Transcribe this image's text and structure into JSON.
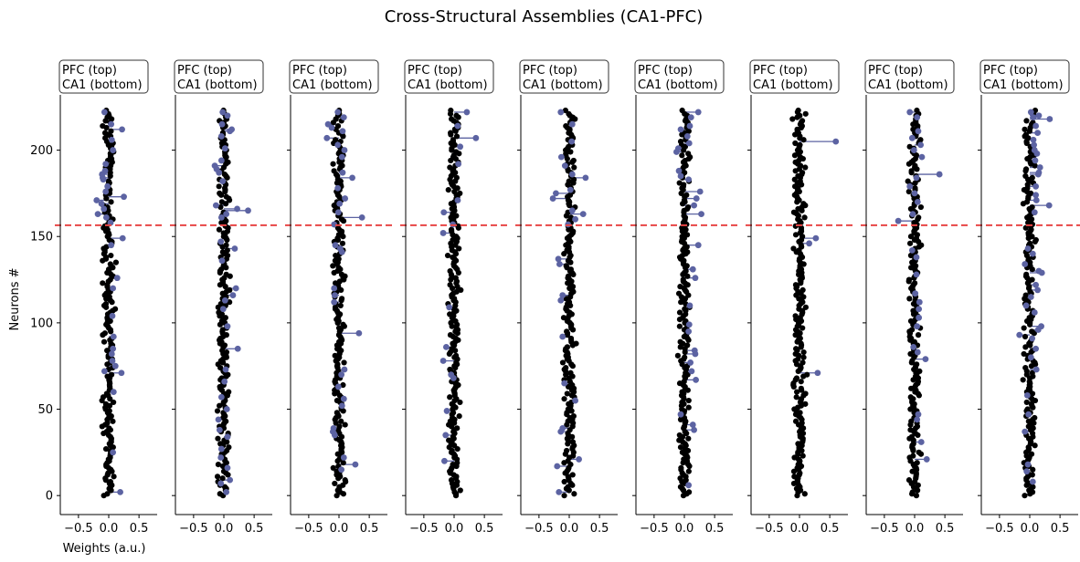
{
  "title": "Cross-Structural Assemblies (CA1-PFC)",
  "colors": {
    "background_point": "#000000",
    "highlight_point": "#5c63a2",
    "divider_line": "#e84646",
    "axis": "#000000"
  },
  "chart_data": {
    "type": "scatter",
    "description_of_marks": "Each panel plots neuron weights (x) against neuron index (y); black dots are all neurons, blue dots with stems are assembly members; dashed red line separates PFC (top) from CA1 (bottom).",
    "xlabel": "Weights (a.u.)",
    "ylabel": "Neurons #",
    "xlim": [
      -0.8,
      0.8
    ],
    "ylim": [
      -11,
      232
    ],
    "xticks": [
      -0.5,
      0.0,
      0.5
    ],
    "xtick_labels": [
      "−0.5",
      "0.0",
      "0.5"
    ],
    "yticks": [
      0,
      50,
      100,
      150,
      200
    ],
    "ytick_labels": [
      "0",
      "50",
      "100",
      "150",
      "200"
    ],
    "divider_y": 156.5,
    "neuron_count": 224,
    "panel_label_line1": "PFC (top)",
    "panel_label_line2": "CA1 (bottom)",
    "panels": [
      {
        "highlights": [
          [
            222,
            -0.07
          ],
          [
            215,
            0.04
          ],
          [
            212,
            0.22
          ],
          [
            206,
            0.05
          ],
          [
            200,
            0.07
          ],
          [
            192,
            -0.05
          ],
          [
            188,
            -0.06
          ],
          [
            186,
            -0.11
          ],
          [
            184,
            -0.1
          ],
          [
            183,
            -0.09
          ],
          [
            179,
            -0.02
          ],
          [
            176,
            -0.05
          ],
          [
            173,
            0.25
          ],
          [
            171,
            -0.2
          ],
          [
            169,
            -0.12
          ],
          [
            166,
            -0.08
          ],
          [
            163,
            -0.18
          ],
          [
            161,
            -0.04
          ],
          [
            158,
            0.03
          ],
          [
            149,
            0.23
          ],
          [
            145,
            0.04
          ],
          [
            126,
            0.14
          ],
          [
            120,
            0.07
          ],
          [
            104,
            0.06
          ],
          [
            92,
            0.08
          ],
          [
            85,
            0.07
          ],
          [
            82,
            0.05
          ],
          [
            78,
            0.06
          ],
          [
            75,
            0.11
          ],
          [
            72,
            -0.07
          ],
          [
            71,
            0.21
          ],
          [
            60,
            0.08
          ],
          [
            25,
            0.07
          ],
          [
            2,
            0.19
          ]
        ]
      },
      {
        "highlights": [
          [
            222,
            -0.02
          ],
          [
            220,
            0.06
          ],
          [
            215,
            -0.03
          ],
          [
            212,
            0.13
          ],
          [
            211,
            0.1
          ],
          [
            208,
            -0.04
          ],
          [
            201,
            0.02
          ],
          [
            194,
            -0.04
          ],
          [
            191,
            -0.15
          ],
          [
            189,
            -0.12
          ],
          [
            187,
            -0.08
          ],
          [
            182,
            -0.02
          ],
          [
            168,
            -0.13
          ],
          [
            166,
            0.22
          ],
          [
            165,
            0.4
          ],
          [
            163,
            0.04
          ],
          [
            161,
            -0.04
          ],
          [
            147,
            -0.05
          ],
          [
            143,
            0.18
          ],
          [
            136,
            -0.03
          ],
          [
            120,
            0.2
          ],
          [
            116,
            0.15
          ],
          [
            113,
            0.02
          ],
          [
            108,
            -0.01
          ],
          [
            98,
            0.06
          ],
          [
            85,
            0.23
          ],
          [
            73,
            0.03
          ],
          [
            66,
            0.01
          ],
          [
            57,
            -0.04
          ],
          [
            50,
            0.05
          ],
          [
            44,
            -0.09
          ],
          [
            38,
            -0.07
          ],
          [
            34,
            0.06
          ],
          [
            27,
            -0.04
          ],
          [
            22,
            -0.05
          ],
          [
            16,
            0.06
          ],
          [
            9,
            0.1
          ],
          [
            7,
            -0.05
          ],
          [
            2,
            0.04
          ]
        ]
      },
      {
        "highlights": [
          [
            222,
            -0.02
          ],
          [
            219,
            0.08
          ],
          [
            215,
            -0.18
          ],
          [
            213,
            -0.12
          ],
          [
            211,
            0.06
          ],
          [
            207,
            -0.2
          ],
          [
            203,
            -0.02
          ],
          [
            200,
            0.09
          ],
          [
            196,
            0.05
          ],
          [
            187,
            0.06
          ],
          [
            184,
            0.22
          ],
          [
            178,
            -0.02
          ],
          [
            172,
            0.1
          ],
          [
            169,
            0.01
          ],
          [
            164,
            -0.01
          ],
          [
            161,
            0.38
          ],
          [
            157,
            -0.08
          ],
          [
            145,
            -0.06
          ],
          [
            143,
            0.02
          ],
          [
            141,
            0.05
          ],
          [
            120,
            -0.08
          ],
          [
            116,
            -0.07
          ],
          [
            112,
            -0.08
          ],
          [
            94,
            0.33
          ],
          [
            73,
            0.09
          ],
          [
            70,
            0.04
          ],
          [
            63,
            -0.01
          ],
          [
            56,
            0.08
          ],
          [
            52,
            0.05
          ],
          [
            39,
            -0.09
          ],
          [
            37,
            -0.1
          ],
          [
            35,
            -0.07
          ],
          [
            22,
            0.08
          ],
          [
            18,
            0.27
          ],
          [
            15,
            0.04
          ]
        ]
      },
      {
        "highlights": [
          [
            222,
            0.21
          ],
          [
            214,
            0.06
          ],
          [
            207,
            0.36
          ],
          [
            202,
            0.1
          ],
          [
            192,
            0.07
          ],
          [
            171,
            0.06
          ],
          [
            164,
            -0.17
          ],
          [
            157,
            -0.02
          ],
          [
            152,
            -0.18
          ],
          [
            109,
            -0.08
          ],
          [
            86,
            -0.13
          ],
          [
            78,
            -0.18
          ],
          [
            70,
            -0.05
          ],
          [
            68,
            -0.01
          ],
          [
            49,
            -0.12
          ],
          [
            35,
            -0.14
          ],
          [
            20,
            -0.16
          ]
        ]
      },
      {
        "highlights": [
          [
            222,
            -0.14
          ],
          [
            215,
            0.05
          ],
          [
            205,
            0.04
          ],
          [
            196,
            -0.13
          ],
          [
            191,
            -0.07
          ],
          [
            186,
            0.05
          ],
          [
            184,
            0.27
          ],
          [
            177,
            0.02
          ],
          [
            175,
            -0.22
          ],
          [
            172,
            -0.27
          ],
          [
            165,
            0.05
          ],
          [
            163,
            0.23
          ],
          [
            160,
            0.1
          ],
          [
            157,
            -0.02
          ],
          [
            137,
            -0.18
          ],
          [
            134,
            -0.16
          ],
          [
            116,
            -0.11
          ],
          [
            113,
            -0.14
          ],
          [
            92,
            -0.11
          ],
          [
            65,
            -0.08
          ],
          [
            55,
            0.1
          ],
          [
            39,
            -0.11
          ],
          [
            37,
            -0.14
          ],
          [
            21,
            0.16
          ],
          [
            17,
            -0.2
          ],
          [
            2,
            -0.17
          ]
        ]
      },
      {
        "highlights": [
          [
            222,
            0.23
          ],
          [
            219,
            0.11
          ],
          [
            214,
            0.09
          ],
          [
            212,
            -0.06
          ],
          [
            208,
            0.05
          ],
          [
            204,
            0.08
          ],
          [
            201,
            -0.1
          ],
          [
            199,
            -0.13
          ],
          [
            188,
            -0.09
          ],
          [
            185,
            -0.06
          ],
          [
            183,
            0.07
          ],
          [
            176,
            0.26
          ],
          [
            172,
            0.2
          ],
          [
            168,
            0.16
          ],
          [
            163,
            0.28
          ],
          [
            145,
            0.23
          ],
          [
            131,
            0.14
          ],
          [
            126,
            0.18
          ],
          [
            110,
            0.09
          ],
          [
            99,
            0.08
          ],
          [
            95,
            0.07
          ],
          [
            84,
            0.17
          ],
          [
            82,
            0.18
          ],
          [
            77,
            0.1
          ],
          [
            72,
            0.12
          ],
          [
            67,
            0.19
          ],
          [
            47,
            -0.06
          ],
          [
            41,
            0.14
          ],
          [
            38,
            0.16
          ],
          [
            6,
            0.07
          ]
        ]
      },
      {
        "highlights": [
          [
            205,
            0.6
          ],
          [
            149,
            0.27
          ],
          [
            146,
            0.16
          ],
          [
            71,
            0.3
          ]
        ]
      },
      {
        "highlights": [
          [
            222,
            -0.08
          ],
          [
            219,
            0.04
          ],
          [
            211,
            0.06
          ],
          [
            207,
            -0.04
          ],
          [
            203,
            0.1
          ],
          [
            200,
            -0.01
          ],
          [
            196,
            0.12
          ],
          [
            186,
            0.41
          ],
          [
            184,
            0.03
          ],
          [
            179,
            -0.08
          ],
          [
            175,
            0.0
          ],
          [
            170,
            0.05
          ],
          [
            163,
            -0.03
          ],
          [
            159,
            -0.27
          ],
          [
            142,
            -0.04
          ],
          [
            138,
            0.03
          ],
          [
            128,
            0.03
          ],
          [
            117,
            0.01
          ],
          [
            112,
            0.08
          ],
          [
            108,
            0.07
          ],
          [
            103,
            0.07
          ],
          [
            98,
            0.04
          ],
          [
            86,
            -0.02
          ],
          [
            83,
            0.05
          ],
          [
            79,
            0.18
          ],
          [
            47,
            0.06
          ],
          [
            44,
            0.04
          ],
          [
            31,
            0.11
          ],
          [
            21,
            0.2
          ]
        ]
      },
      {
        "highlights": [
          [
            222,
            0.02
          ],
          [
            220,
            0.15
          ],
          [
            219,
            0.06
          ],
          [
            218,
            0.33
          ],
          [
            214,
            0.1
          ],
          [
            210,
            0.13
          ],
          [
            206,
            0.06
          ],
          [
            203,
            0.07
          ],
          [
            200,
            0.08
          ],
          [
            198,
            0.12
          ],
          [
            194,
            0.09
          ],
          [
            190,
            0.17
          ],
          [
            187,
            0.15
          ],
          [
            186,
            0.14
          ],
          [
            179,
            0.1
          ],
          [
            174,
            0.1
          ],
          [
            171,
            0.11
          ],
          [
            168,
            0.32
          ],
          [
            164,
            0.08
          ],
          [
            143,
            -0.03
          ],
          [
            140,
            0.05
          ],
          [
            134,
            -0.08
          ],
          [
            130,
            0.15
          ],
          [
            129,
            0.2
          ],
          [
            122,
            0.1
          ],
          [
            119,
            0.13
          ],
          [
            115,
            0.02
          ],
          [
            110,
            -0.06
          ],
          [
            106,
            0.08
          ],
          [
            98,
            0.19
          ],
          [
            96,
            0.14
          ],
          [
            93,
            -0.17
          ],
          [
            91,
            0.04
          ],
          [
            85,
            0.1
          ],
          [
            80,
            0.02
          ],
          [
            73,
            0.11
          ],
          [
            58,
            -0.04
          ],
          [
            47,
            -0.02
          ],
          [
            37,
            -0.08
          ],
          [
            18,
            -0.03
          ],
          [
            14,
            -0.05
          ],
          [
            8,
            0.05
          ]
        ]
      }
    ]
  }
}
